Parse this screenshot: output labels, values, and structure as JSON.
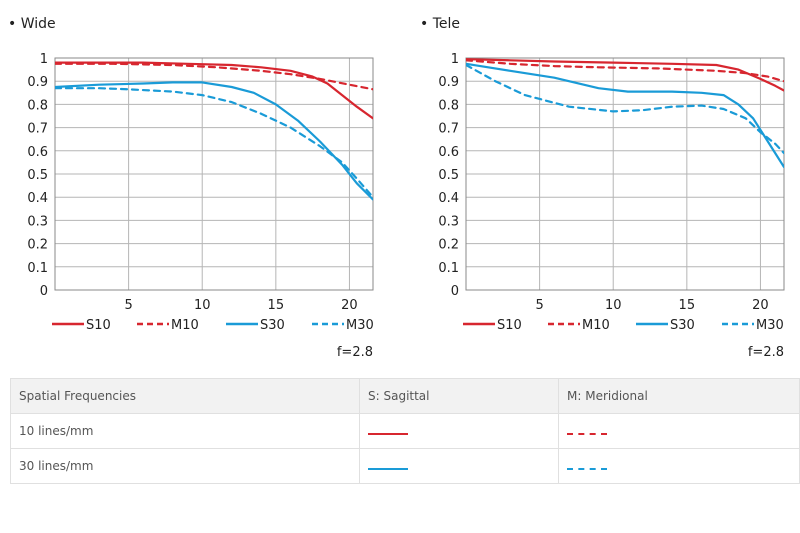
{
  "chart_data": [
    {
      "type": "line",
      "title": "• Wide",
      "xticks": [
        5,
        10,
        15,
        20
      ],
      "yticks": [
        "0",
        "0.1",
        "0.2",
        "0.3",
        "0.4",
        "0.5",
        "0.6",
        "0.7",
        "0.8",
        "0.9",
        "1"
      ],
      "xlim": [
        0,
        21.6
      ],
      "ylim": [
        0,
        1
      ],
      "grid": true,
      "legend_position": "bottom",
      "aperture": "f=2.8",
      "series": [
        {
          "name": "S10",
          "color": "#d7262f",
          "dash": false,
          "points": [
            [
              0,
              0.98
            ],
            [
              3,
              0.98
            ],
            [
              6,
              0.98
            ],
            [
              9,
              0.975
            ],
            [
              12,
              0.97
            ],
            [
              14,
              0.96
            ],
            [
              16,
              0.945
            ],
            [
              17.5,
              0.92
            ],
            [
              18.5,
              0.89
            ],
            [
              19.5,
              0.84
            ],
            [
              20.5,
              0.79
            ],
            [
              21.6,
              0.74
            ]
          ]
        },
        {
          "name": "M10",
          "color": "#d7262f",
          "dash": true,
          "points": [
            [
              0,
              0.975
            ],
            [
              4,
              0.975
            ],
            [
              8,
              0.97
            ],
            [
              11,
              0.96
            ],
            [
              14,
              0.945
            ],
            [
              16,
              0.93
            ],
            [
              18,
              0.91
            ],
            [
              20,
              0.885
            ],
            [
              21.6,
              0.865
            ]
          ]
        },
        {
          "name": "S30",
          "color": "#1a9bd7",
          "dash": false,
          "points": [
            [
              0,
              0.875
            ],
            [
              3,
              0.885
            ],
            [
              6,
              0.89
            ],
            [
              8,
              0.895
            ],
            [
              10,
              0.895
            ],
            [
              12,
              0.875
            ],
            [
              13.5,
              0.85
            ],
            [
              15,
              0.8
            ],
            [
              16.5,
              0.73
            ],
            [
              18,
              0.64
            ],
            [
              19.5,
              0.54
            ],
            [
              20.5,
              0.46
            ],
            [
              21.6,
              0.39
            ]
          ]
        },
        {
          "name": "M30",
          "color": "#1a9bd7",
          "dash": true,
          "points": [
            [
              0,
              0.87
            ],
            [
              3,
              0.87
            ],
            [
              5,
              0.865
            ],
            [
              8,
              0.855
            ],
            [
              10,
              0.84
            ],
            [
              12,
              0.81
            ],
            [
              14,
              0.76
            ],
            [
              16,
              0.7
            ],
            [
              18,
              0.62
            ],
            [
              19.5,
              0.55
            ],
            [
              20.5,
              0.48
            ],
            [
              21.6,
              0.4
            ]
          ]
        }
      ]
    },
    {
      "type": "line",
      "title": "• Tele",
      "xticks": [
        5,
        10,
        15,
        20
      ],
      "yticks": [
        "0",
        "0.1",
        "0.2",
        "0.3",
        "0.4",
        "0.5",
        "0.6",
        "0.7",
        "0.8",
        "0.9",
        "1"
      ],
      "xlim": [
        0,
        21.6
      ],
      "ylim": [
        0,
        1
      ],
      "grid": true,
      "legend_position": "bottom",
      "aperture": "f=2.8",
      "series": [
        {
          "name": "S10",
          "color": "#d7262f",
          "dash": false,
          "points": [
            [
              0,
              0.995
            ],
            [
              3,
              0.99
            ],
            [
              6,
              0.985
            ],
            [
              10,
              0.98
            ],
            [
              14,
              0.975
            ],
            [
              17,
              0.97
            ],
            [
              18.5,
              0.95
            ],
            [
              20,
              0.91
            ],
            [
              21,
              0.88
            ],
            [
              21.6,
              0.86
            ]
          ]
        },
        {
          "name": "M10",
          "color": "#d7262f",
          "dash": true,
          "points": [
            [
              0,
              0.99
            ],
            [
              3,
              0.975
            ],
            [
              6,
              0.965
            ],
            [
              9,
              0.96
            ],
            [
              13,
              0.955
            ],
            [
              17,
              0.945
            ],
            [
              19,
              0.935
            ],
            [
              20.5,
              0.92
            ],
            [
              21.6,
              0.9
            ]
          ]
        },
        {
          "name": "S30",
          "color": "#1a9bd7",
          "dash": false,
          "points": [
            [
              0,
              0.975
            ],
            [
              3,
              0.945
            ],
            [
              6,
              0.915
            ],
            [
              9,
              0.87
            ],
            [
              11,
              0.855
            ],
            [
              14,
              0.855
            ],
            [
              16,
              0.85
            ],
            [
              17.5,
              0.84
            ],
            [
              18.5,
              0.8
            ],
            [
              19.5,
              0.74
            ],
            [
              20.3,
              0.66
            ],
            [
              21,
              0.59
            ],
            [
              21.6,
              0.53
            ]
          ]
        },
        {
          "name": "M30",
          "color": "#1a9bd7",
          "dash": true,
          "points": [
            [
              0,
              0.97
            ],
            [
              2,
              0.9
            ],
            [
              4,
              0.84
            ],
            [
              7,
              0.79
            ],
            [
              10,
              0.77
            ],
            [
              12,
              0.775
            ],
            [
              14,
              0.79
            ],
            [
              16,
              0.795
            ],
            [
              17.5,
              0.78
            ],
            [
              19,
              0.74
            ],
            [
              20,
              0.68
            ],
            [
              21,
              0.63
            ],
            [
              21.6,
              0.59
            ]
          ]
        }
      ]
    }
  ],
  "table": {
    "header": [
      "Spatial Frequencies",
      "S: Sagittal",
      "M: Meridional"
    ],
    "rows": [
      {
        "label": "10 lines/mm",
        "color": "#d7262f"
      },
      {
        "label": "30 lines/mm",
        "color": "#1a9bd7"
      }
    ]
  }
}
